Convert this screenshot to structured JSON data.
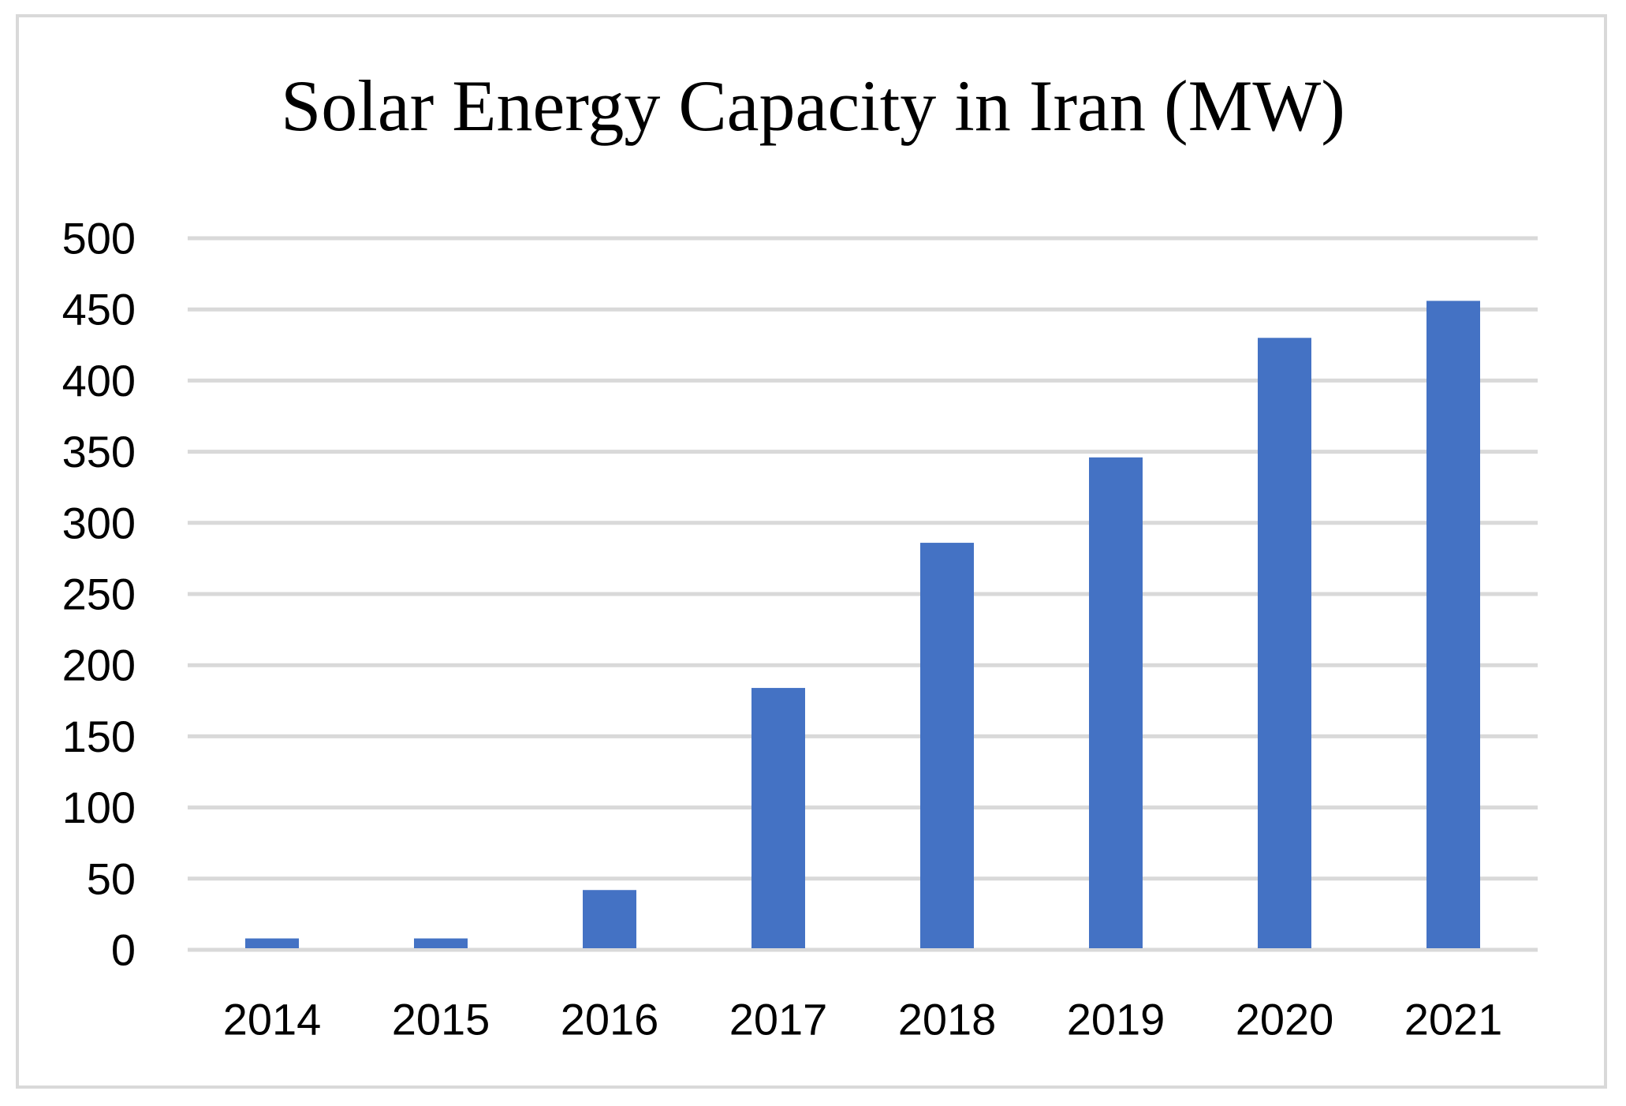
{
  "chart_data": {
    "type": "bar",
    "title": "Solar Energy Capacity in Iran (MW)",
    "xlabel": "",
    "ylabel": "",
    "categories": [
      "2014",
      "2015",
      "2016",
      "2017",
      "2018",
      "2019",
      "2020",
      "2021"
    ],
    "values": [
      8,
      8,
      42,
      184,
      286,
      346,
      430,
      456
    ],
    "ylim": [
      0,
      500
    ],
    "yticks": [
      0,
      50,
      100,
      150,
      200,
      250,
      300,
      350,
      400,
      450,
      500
    ],
    "ytick_labels": [
      "0",
      "50",
      "100",
      "150",
      "200",
      "250",
      "300",
      "350",
      "400",
      "450",
      "500"
    ],
    "grid": true,
    "bar_color": "#4472c4",
    "grid_color": "#d9d9d9",
    "legend": "none"
  }
}
